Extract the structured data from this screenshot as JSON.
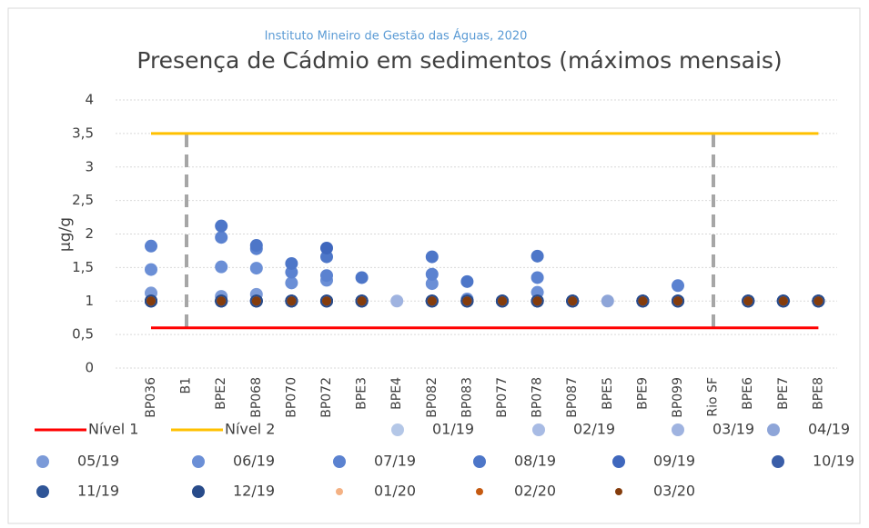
{
  "chart_data": {
    "type": "scatter",
    "subtitle": "Instituto Mineiro de Gestão das Águas, 2020",
    "title": "Presença de Cádmio em sedimentos (máximos mensais)",
    "y_label": "µg/g",
    "categories": [
      "BP036",
      "B1",
      "BPE2",
      "BP068",
      "BP070",
      "BP072",
      "BPE3",
      "BPE4",
      "BP082",
      "BP083",
      "BP077",
      "BP078",
      "BP087",
      "BPE5",
      "BPE9",
      "BP099",
      "Rio SF",
      "BPE6",
      "BPE7",
      "BPE8"
    ],
    "ylim": [
      0,
      4
    ],
    "yticks": [
      0,
      {
        "value": 0.5,
        "label": "0,5"
      },
      1,
      {
        "value": 1.5,
        "label": "1,5"
      },
      2,
      {
        "value": 2.5,
        "label": "2,5"
      },
      3,
      {
        "value": 3.5,
        "label": "3,5"
      },
      4
    ],
    "grid": true,
    "series": [
      {
        "name": "Nível 1",
        "type": "line",
        "color": "#ff0000",
        "values": [
          0.6,
          0.6,
          0.6,
          0.6,
          0.6,
          0.6,
          0.6,
          0.6,
          0.6,
          0.6,
          0.6,
          0.6,
          0.6,
          0.6,
          0.6,
          0.6,
          0.6,
          0.6,
          0.6,
          0.6
        ]
      },
      {
        "name": "Nível 2",
        "type": "line",
        "color": "#ffc000",
        "values": [
          3.5,
          3.5,
          3.5,
          3.5,
          3.5,
          3.5,
          3.5,
          3.5,
          3.5,
          3.5,
          3.5,
          3.5,
          3.5,
          3.5,
          3.5,
          3.5,
          3.5,
          3.5,
          3.5,
          3.5
        ]
      },
      {
        "name": "01/19",
        "color": "#b4c7e7",
        "values": [
          1,
          null,
          1,
          1,
          1,
          1,
          1,
          null,
          1,
          1,
          1,
          1,
          1,
          null,
          1,
          1,
          null,
          1,
          1,
          1
        ]
      },
      {
        "name": "02/19",
        "color": "#a8bbe4",
        "values": [
          1,
          null,
          1,
          1,
          1,
          1,
          1,
          null,
          1,
          1,
          1,
          1,
          1,
          null,
          1,
          1,
          null,
          1,
          1,
          1
        ]
      },
      {
        "name": "03/19",
        "color": "#9fb3e0",
        "values": [
          1,
          null,
          1,
          1,
          1,
          1,
          1,
          1,
          1,
          1,
          1,
          1,
          1,
          null,
          1,
          1,
          null,
          1,
          1,
          1
        ]
      },
      {
        "name": "04/19",
        "color": "#8ea5d8",
        "values": [
          1,
          null,
          1,
          1,
          1,
          1,
          1,
          null,
          1,
          1,
          1,
          1,
          1,
          1,
          1,
          1,
          null,
          1,
          1,
          1
        ]
      },
      {
        "name": "05/19",
        "color": "#7b9ad8",
        "values": [
          1.12,
          null,
          1.07,
          1.1,
          1,
          1,
          1,
          null,
          1,
          1,
          1,
          1,
          1,
          null,
          1,
          1,
          null,
          1,
          1,
          1
        ]
      },
      {
        "name": "06/19",
        "color": "#6b8fd6",
        "values": [
          1.47,
          null,
          1.51,
          1.49,
          1.27,
          1.31,
          1,
          null,
          1.26,
          1.03,
          1,
          1.13,
          1,
          null,
          1,
          1,
          null,
          1,
          1,
          1
        ]
      },
      {
        "name": "07/19",
        "color": "#5b82d0",
        "values": [
          1.82,
          null,
          1.95,
          1.78,
          1.43,
          1.38,
          1,
          null,
          1.4,
          1,
          1,
          1.35,
          1,
          null,
          1,
          1.23,
          null,
          1,
          1,
          1
        ]
      },
      {
        "name": "08/19",
        "color": "#4d76c8",
        "values": [
          1,
          null,
          2.12,
          1.83,
          1.56,
          1.66,
          1.35,
          null,
          1.66,
          1.29,
          1,
          1.67,
          1,
          null,
          1,
          1,
          null,
          1,
          1,
          1
        ]
      },
      {
        "name": "09/19",
        "color": "#3f67bd",
        "values": [
          1,
          null,
          1,
          1,
          1,
          1.79,
          1,
          null,
          1,
          1,
          1,
          1,
          1,
          null,
          1,
          1,
          null,
          1,
          1,
          1
        ]
      },
      {
        "name": "10/19",
        "color": "#3a5ea8",
        "values": [
          1,
          null,
          1,
          1,
          1,
          1,
          1,
          null,
          1,
          1,
          1,
          1,
          1,
          null,
          1,
          1,
          null,
          1,
          1,
          1
        ]
      },
      {
        "name": "11/19",
        "color": "#2f5597",
        "values": [
          1,
          null,
          1,
          1,
          1,
          1,
          1,
          null,
          1,
          1,
          1,
          1,
          1,
          null,
          1,
          1,
          null,
          1,
          1,
          1
        ]
      },
      {
        "name": "12/19",
        "color": "#284b8a",
        "values": [
          1,
          null,
          1,
          1,
          1,
          1,
          1,
          null,
          1,
          1,
          1,
          1,
          1,
          null,
          1,
          1,
          null,
          1,
          1,
          1
        ]
      },
      {
        "name": "01/20",
        "color": "#f4b183",
        "values": [
          1,
          null,
          1,
          1,
          1,
          1,
          1,
          null,
          1,
          1,
          1,
          1,
          1,
          null,
          1,
          1,
          null,
          1,
          1,
          1
        ]
      },
      {
        "name": "02/20",
        "color": "#c55a11",
        "values": [
          1,
          null,
          1,
          1,
          1,
          1,
          1,
          null,
          1,
          1,
          1,
          1,
          1,
          null,
          1,
          1,
          null,
          1,
          1,
          1
        ]
      },
      {
        "name": "03/20",
        "color": "#843c0c",
        "values": [
          1,
          null,
          1,
          1,
          1,
          1,
          1,
          null,
          1,
          1,
          1,
          1,
          1,
          null,
          1,
          1,
          null,
          1,
          1,
          1
        ]
      }
    ]
  }
}
